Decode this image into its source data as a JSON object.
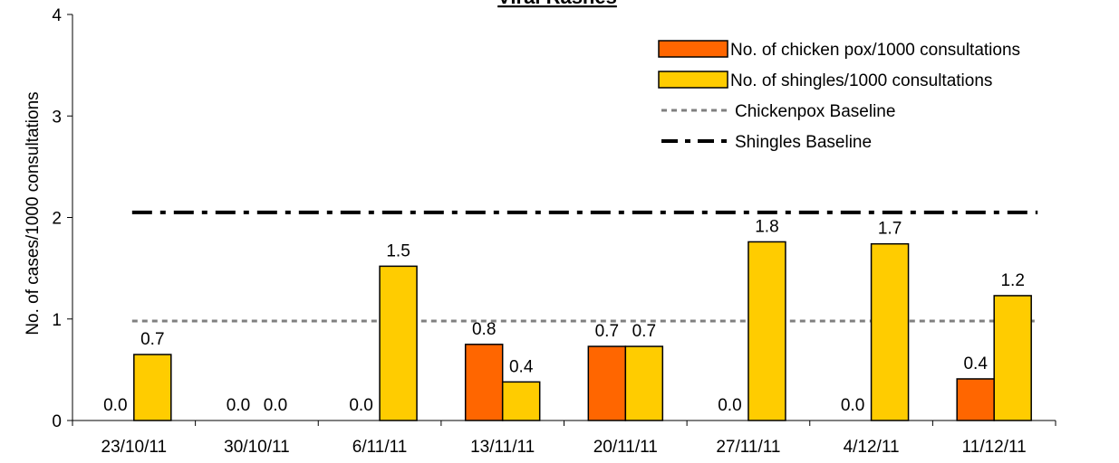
{
  "chart_data": {
    "type": "bar",
    "title": "Viral Rashes",
    "ylabel": "No. of cases/1000 consultations",
    "xlabel": "",
    "ylim": [
      0,
      4
    ],
    "yticks": [
      "0",
      "1",
      "2",
      "3",
      "4"
    ],
    "categories": [
      "23/10/11",
      "30/10/11",
      "6/11/11",
      "13/11/11",
      "20/11/11",
      "27/11/11",
      "4/12/11",
      "11/12/11"
    ],
    "series": [
      {
        "name": "No. of chicken pox/1000 consultations",
        "color": "#ff6600",
        "values": [
          0.0,
          0.0,
          0.0,
          0.75,
          0.73,
          0.0,
          0.0,
          0.41
        ],
        "labels": [
          "0.0",
          "0.0",
          "0.0",
          "0.8",
          "0.7",
          "0.0",
          "0.0",
          "0.4"
        ]
      },
      {
        "name": "No. of shingles/1000 consultations",
        "color": "#ffcc00",
        "values": [
          0.65,
          0.0,
          1.52,
          0.38,
          0.73,
          1.76,
          1.74,
          1.23
        ],
        "labels": [
          "0.7",
          "0.0",
          "1.5",
          "0.4",
          "0.7",
          "1.8",
          "1.7",
          "1.2"
        ]
      }
    ],
    "baselines": [
      {
        "name": "Chickenpox Baseline",
        "value": 0.98,
        "style": "dotted",
        "color": "#808080"
      },
      {
        "name": "Shingles Baseline",
        "value": 2.05,
        "style": "dash-dot",
        "color": "#000000"
      }
    ],
    "grid": false,
    "legend_position": "top-right"
  }
}
